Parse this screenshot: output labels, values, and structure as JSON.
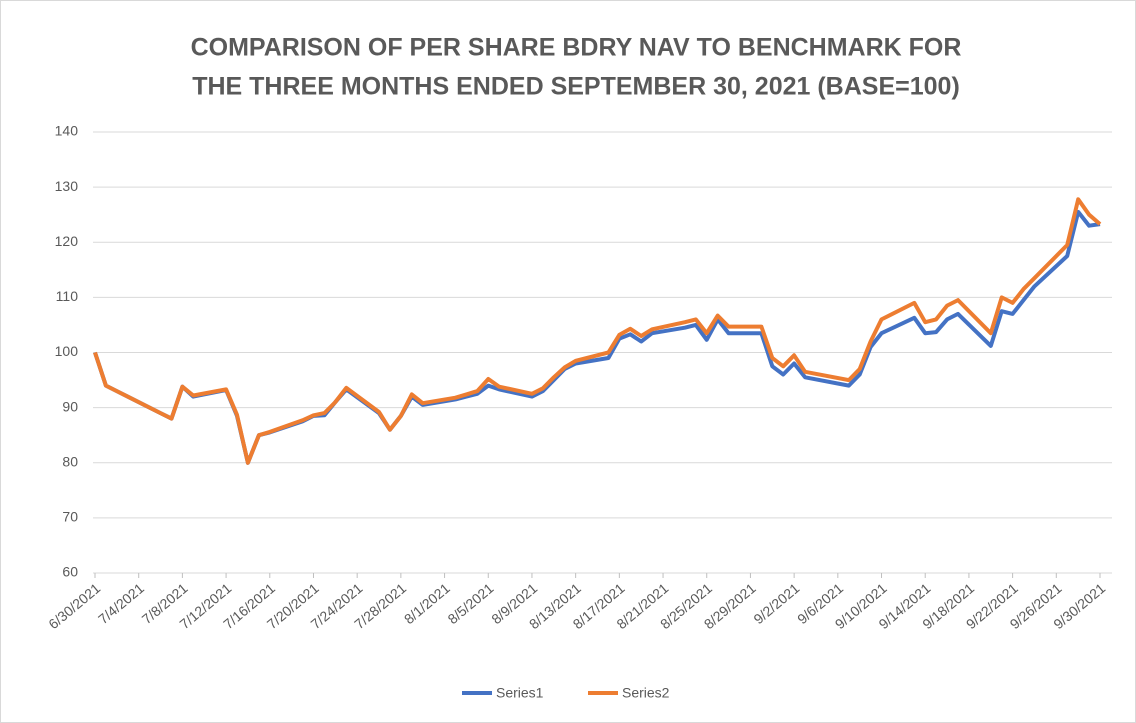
{
  "chart_data": {
    "type": "line",
    "title": [
      "COMPARISON OF PER SHARE BDRY NAV TO BENCHMARK FOR",
      "THE THREE MONTHS ENDED SEPTEMBER 30, 2021 (BASE=100)"
    ],
    "x": [
      "6/30/2021",
      "7/1/2021",
      "7/2/2021",
      "7/6/2021",
      "7/7/2021",
      "7/8/2021",
      "7/9/2021",
      "7/12/2021",
      "7/13/2021",
      "7/14/2021",
      "7/15/2021",
      "7/16/2021",
      "7/19/2021",
      "7/20/2021",
      "7/21/2021",
      "7/22/2021",
      "7/23/2021",
      "7/26/2021",
      "7/27/2021",
      "7/28/2021",
      "7/29/2021",
      "7/30/2021",
      "8/2/2021",
      "8/3/2021",
      "8/4/2021",
      "8/5/2021",
      "8/6/2021",
      "8/9/2021",
      "8/10/2021",
      "8/11/2021",
      "8/12/2021",
      "8/13/2021",
      "8/16/2021",
      "8/17/2021",
      "8/18/2021",
      "8/19/2021",
      "8/20/2021",
      "8/23/2021",
      "8/24/2021",
      "8/25/2021",
      "8/26/2021",
      "8/27/2021",
      "8/30/2021",
      "8/31/2021",
      "9/1/2021",
      "9/2/2021",
      "9/3/2021",
      "9/7/2021",
      "9/8/2021",
      "9/9/2021",
      "9/10/2021",
      "9/13/2021",
      "9/14/2021",
      "9/15/2021",
      "9/16/2021",
      "9/17/2021",
      "9/20/2021",
      "9/21/2021",
      "9/22/2021",
      "9/23/2021",
      "9/24/2021",
      "9/27/2021",
      "9/28/2021",
      "9/29/2021",
      "9/30/2021"
    ],
    "series": [
      {
        "name": "Series1",
        "color": "#4472c4",
        "values": [
          100,
          94,
          93,
          89,
          88,
          93.8,
          92,
          93.2,
          88.5,
          80,
          85,
          85.5,
          87.5,
          88.5,
          88.6,
          91,
          93.3,
          89,
          86,
          88.5,
          92,
          90.5,
          91.5,
          92,
          92.5,
          94,
          93.3,
          92,
          93,
          95,
          97,
          98,
          99,
          102.5,
          103.3,
          102,
          103.5,
          104.5,
          105,
          102.3,
          106,
          103.5,
          103.5,
          97.5,
          96,
          98,
          95.5,
          94,
          96,
          101,
          103.5,
          106.3,
          103.5,
          103.7,
          106,
          107,
          101.2,
          107.5,
          107,
          109.5,
          112,
          117.5,
          125.5,
          123,
          123.3
        ]
      },
      {
        "name": "Series2",
        "color": "#ed7d31",
        "values": [
          100,
          94,
          93,
          89,
          88,
          93.8,
          92.2,
          93.3,
          88.7,
          80,
          85,
          85.6,
          87.7,
          88.6,
          89,
          91,
          93.6,
          89.2,
          86,
          88.5,
          92.4,
          90.8,
          91.8,
          92.4,
          93,
          95.2,
          93.8,
          92.5,
          93.5,
          95.5,
          97.3,
          98.5,
          100,
          103.2,
          104.3,
          103,
          104.2,
          105.5,
          106,
          103.5,
          106.7,
          104.7,
          104.7,
          99,
          97.5,
          99.5,
          96.5,
          95,
          97,
          102,
          106,
          109,
          105.5,
          106,
          108.5,
          109.5,
          103.5,
          110,
          109,
          111.5,
          113.5,
          119.5,
          127.8,
          125,
          123.3
        ]
      }
    ],
    "xlim": [
      "6/30/2021",
      "9/30/2021"
    ],
    "xticks": [
      "6/30/2021",
      "7/4/2021",
      "7/8/2021",
      "7/12/2021",
      "7/16/2021",
      "7/20/2021",
      "7/24/2021",
      "7/28/2021",
      "8/1/2021",
      "8/5/2021",
      "8/9/2021",
      "8/13/2021",
      "8/17/2021",
      "8/21/2021",
      "8/25/2021",
      "8/29/2021",
      "9/2/2021",
      "9/6/2021",
      "9/10/2021",
      "9/14/2021",
      "9/18/2021",
      "9/22/2021",
      "9/26/2021",
      "9/30/2021"
    ],
    "ylim": [
      60,
      140
    ],
    "yticks": [
      60,
      70,
      80,
      90,
      100,
      110,
      120,
      130,
      140
    ],
    "grid": true,
    "legend": "bottom"
  }
}
